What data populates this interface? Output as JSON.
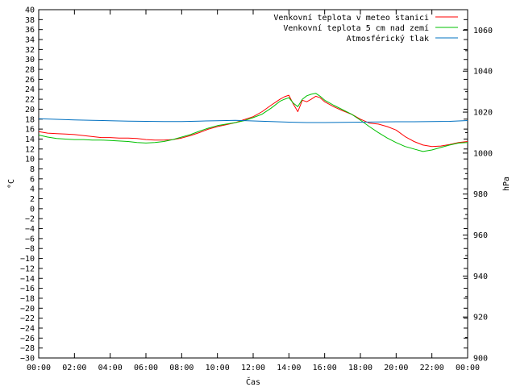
{
  "chart_data": {
    "type": "line",
    "xlabel": "Čas",
    "ylabel": "°C",
    "y2label": "hPa",
    "x_ticks": [
      "00:00",
      "02:00",
      "04:00",
      "06:00",
      "08:00",
      "10:00",
      "12:00",
      "14:00",
      "16:00",
      "18:00",
      "20:00",
      "22:00",
      "00:00"
    ],
    "xlim_hours": [
      0,
      24
    ],
    "ylim": [
      -30,
      40
    ],
    "y_ticks": [
      40,
      38,
      36,
      34,
      32,
      30,
      28,
      26,
      24,
      22,
      20,
      18,
      16,
      14,
      12,
      10,
      8,
      6,
      4,
      2,
      0,
      -2,
      -4,
      -6,
      -8,
      -10,
      -12,
      -14,
      -16,
      -18,
      -20,
      -22,
      -24,
      -26,
      -28,
      -30
    ],
    "y2lim": [
      900,
      1070
    ],
    "y2_ticks": [
      1060,
      1040,
      1020,
      1000,
      980,
      960,
      940,
      920,
      900
    ],
    "grid": false,
    "legend_position": "top-right",
    "series": [
      {
        "name": "Venkovní teplota v meteo stanici",
        "axis": "left",
        "color": "#ff0000",
        "x": [
          0,
          0.5,
          1,
          1.5,
          2,
          2.5,
          3,
          3.5,
          4,
          4.5,
          5,
          5.5,
          6,
          6.5,
          7,
          7.5,
          8,
          8.5,
          9,
          9.5,
          10,
          10.5,
          11,
          11.5,
          12,
          12.5,
          13,
          13.5,
          13.75,
          14,
          14.25,
          14.5,
          14.75,
          15,
          15.25,
          15.5,
          15.75,
          16,
          16.5,
          17,
          17.5,
          18,
          18.5,
          19,
          19.5,
          20,
          20.5,
          21,
          21.5,
          22,
          22.5,
          23,
          23.5,
          24
        ],
        "values": [
          15.5,
          15.2,
          15.1,
          15,
          14.9,
          14.7,
          14.5,
          14.3,
          14.3,
          14.2,
          14.2,
          14.1,
          13.9,
          13.8,
          13.8,
          13.9,
          14.2,
          14.7,
          15.3,
          16,
          16.5,
          16.9,
          17.3,
          17.9,
          18.5,
          19.5,
          20.8,
          22,
          22.5,
          22.8,
          21,
          19.5,
          21.8,
          21.5,
          22,
          22.6,
          22.3,
          21.5,
          20.5,
          19.7,
          19,
          18,
          17.2,
          17,
          16.5,
          15.8,
          14.5,
          13.5,
          12.8,
          12.5,
          12.6,
          12.9,
          13.3,
          13.5
        ]
      },
      {
        "name": "Venkovní teplota 5 cm nad zemí",
        "axis": "left",
        "color": "#00c000",
        "x": [
          0,
          0.5,
          1,
          1.5,
          2,
          2.5,
          3,
          3.5,
          4,
          4.5,
          5,
          5.5,
          6,
          6.5,
          7,
          7.5,
          8,
          8.5,
          9,
          9.5,
          10,
          10.5,
          11,
          11.5,
          12,
          12.5,
          13,
          13.5,
          13.75,
          14,
          14.25,
          14.5,
          14.75,
          15,
          15.25,
          15.5,
          15.75,
          16,
          16.5,
          17,
          17.5,
          18,
          18.5,
          19,
          19.5,
          20,
          20.5,
          21,
          21.5,
          22,
          22.5,
          23,
          23.5,
          24
        ],
        "values": [
          14.8,
          14.4,
          14.1,
          14,
          13.9,
          13.9,
          13.8,
          13.8,
          13.7,
          13.6,
          13.5,
          13.3,
          13.2,
          13.3,
          13.5,
          13.9,
          14.4,
          14.9,
          15.6,
          16.2,
          16.7,
          17,
          17.3,
          17.7,
          18.3,
          19,
          20.2,
          21.6,
          22,
          22.3,
          21.2,
          20.5,
          22,
          22.7,
          23,
          23.2,
          22.6,
          21.8,
          20.8,
          19.9,
          19,
          17.8,
          16.5,
          15.3,
          14.2,
          13.3,
          12.5,
          12,
          11.5,
          11.8,
          12.3,
          12.8,
          13.2,
          13.3
        ]
      },
      {
        "name": "Atmosférický tlak",
        "axis": "right",
        "color": "#0070c0",
        "x": [
          0,
          1,
          2,
          3,
          4,
          5,
          6,
          7,
          8,
          9,
          10,
          11,
          12,
          13,
          14,
          15,
          16,
          17,
          18,
          19,
          20,
          21,
          22,
          23,
          24
        ],
        "values": [
          1016.8,
          1016.5,
          1016.2,
          1016,
          1015.8,
          1015.6,
          1015.5,
          1015.4,
          1015.4,
          1015.6,
          1015.8,
          1016,
          1015.7,
          1015.4,
          1015.1,
          1014.9,
          1014.9,
          1015,
          1015.1,
          1015.2,
          1015.3,
          1015.3,
          1015.4,
          1015.5,
          1015.9
        ]
      }
    ]
  }
}
